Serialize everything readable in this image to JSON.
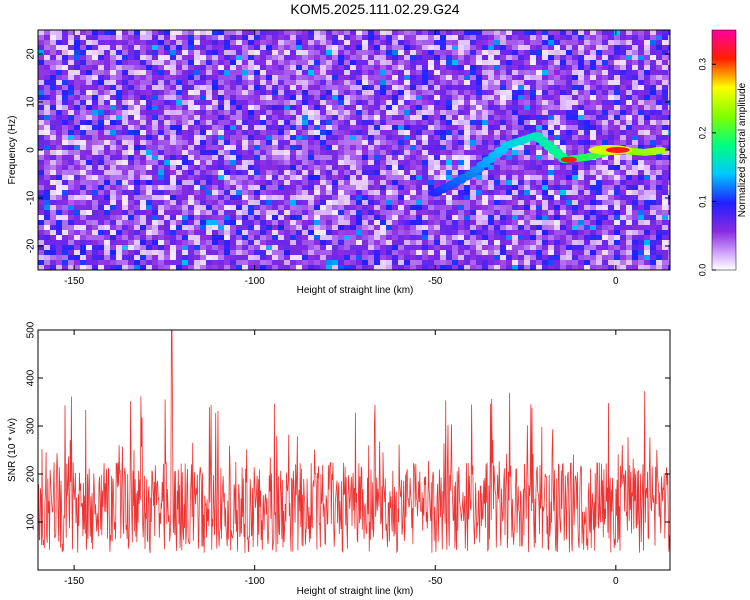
{
  "title": "KOM5.2025.111.02.29.G24",
  "chart_data": [
    {
      "type": "heatmap",
      "title": "KOM5.2025.111.02.29.G24",
      "xlabel": "Height of straight line (km)",
      "ylabel": "Frequency (Hz)",
      "xlim": [
        -160,
        15
      ],
      "ylim": [
        -25,
        25
      ],
      "x_ticks": [
        -150,
        -100,
        -50,
        0
      ],
      "y_ticks": [
        -20,
        -10,
        0,
        10,
        20
      ],
      "colorbar": {
        "label": "Normalized spectral amplitude",
        "range": [
          0,
          0.35
        ],
        "ticks": [
          0.0,
          0.1,
          0.2,
          0.3
        ],
        "colormap": "rainbow (white-purple-blue-cyan-green-yellow-red-magenta)"
      },
      "peak": {
        "x": 0.5,
        "y": 0,
        "value": 0.33
      },
      "ridge": [
        {
          "x": -50,
          "y": -9
        },
        {
          "x": -40,
          "y": -5
        },
        {
          "x": -30,
          "y": 1
        },
        {
          "x": -22,
          "y": 3
        },
        {
          "x": -14,
          "y": -2
        },
        {
          "x": -8,
          "y": -1.5
        },
        {
          "x": 0,
          "y": 0
        },
        {
          "x": 8,
          "y": -0.5
        },
        {
          "x": 13,
          "y": 0
        }
      ],
      "grid": false
    },
    {
      "type": "line",
      "xlabel": "Height of straight line (km)",
      "ylabel": "SNR (10 * v/v)",
      "xlim": [
        -160,
        15
      ],
      "ylim": [
        0,
        500
      ],
      "x_ticks": [
        -150,
        -100,
        -50,
        0
      ],
      "y_ticks": [
        100,
        200,
        300,
        400,
        500
      ],
      "series": [
        {
          "color": "#ee3333",
          "mean": 130,
          "min": 15,
          "max": 500,
          "max_at_x": -123
        }
      ],
      "grid": false
    }
  ],
  "colors": {
    "snr_line": "#ee3333",
    "peak": "#ff0000",
    "background_cell": "#a050f0"
  }
}
